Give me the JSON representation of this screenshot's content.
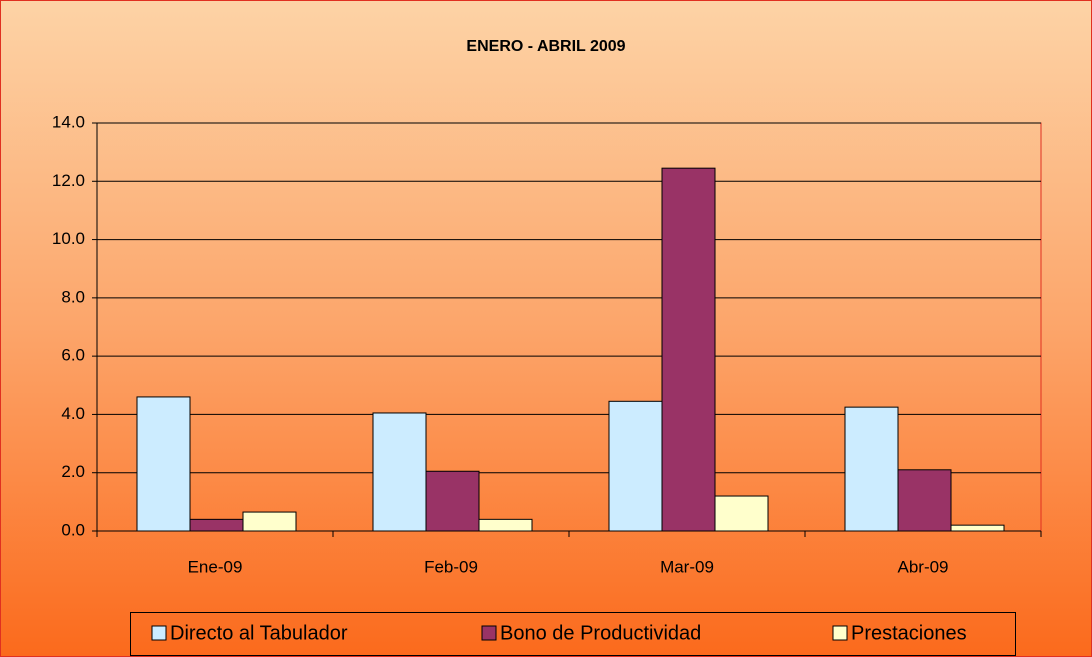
{
  "chart_data": {
    "type": "bar",
    "title": "ENERO - ABRIL 2009",
    "categories": [
      "Ene-09",
      "Feb-09",
      "Mar-09",
      "Abr-09"
    ],
    "series": [
      {
        "name": "Directo al Tabulador",
        "color": "#ccecff",
        "values": [
          4.6,
          4.05,
          4.45,
          4.25
        ]
      },
      {
        "name": "Bono de Productividad",
        "color": "#993366",
        "values": [
          0.4,
          2.05,
          12.45,
          2.1
        ]
      },
      {
        "name": "Prestaciones",
        "color": "#ffffcc",
        "values": [
          0.65,
          0.4,
          1.2,
          0.2
        ]
      }
    ],
    "ylim": [
      0,
      14
    ],
    "yticks": [
      {
        "value": 0,
        "label": "0.0"
      },
      {
        "value": 2,
        "label": "2.0"
      },
      {
        "value": 4,
        "label": "4.0"
      },
      {
        "value": 6,
        "label": "6.0"
      },
      {
        "value": 8,
        "label": "8.0"
      },
      {
        "value": 10,
        "label": "10.0"
      },
      {
        "value": 12,
        "label": "12.0"
      },
      {
        "value": 14,
        "label": "14.0"
      }
    ],
    "grid": true,
    "legend": "bottom"
  }
}
